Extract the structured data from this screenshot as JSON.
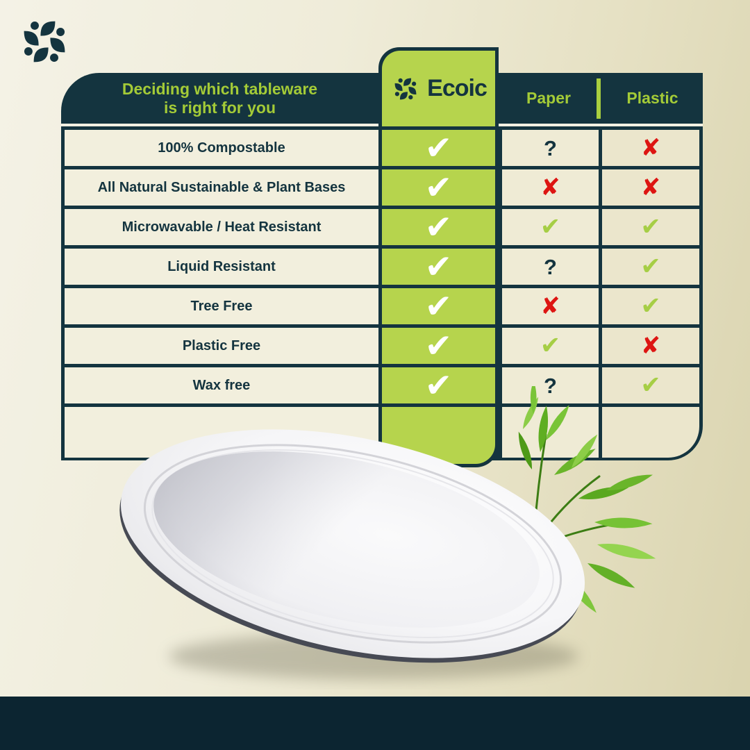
{
  "brand": {
    "name": "Ecoic",
    "logo_icon": "ecoic-leaf-pinwheel-logo"
  },
  "table": {
    "title_line1": "Deciding which tableware",
    "title_line2": "is right for you",
    "columns": {
      "ecoic": "Ecoic",
      "paper": "Paper",
      "plastic": "Plastic"
    },
    "rows": [
      {
        "feature": "100% Compostable",
        "ecoic": "check",
        "paper": "question",
        "plastic": "cross"
      },
      {
        "feature": "All Natural Sustainable & Plant Bases",
        "ecoic": "check",
        "paper": "cross",
        "plastic": "cross"
      },
      {
        "feature": "Microwavable / Heat Resistant",
        "ecoic": "check",
        "paper": "check",
        "plastic": "check"
      },
      {
        "feature": "Liquid Resistant",
        "ecoic": "check",
        "paper": "question",
        "plastic": "check"
      },
      {
        "feature": "Tree Free",
        "ecoic": "check",
        "paper": "cross",
        "plastic": "check"
      },
      {
        "feature": "Plastic Free",
        "ecoic": "check",
        "paper": "check",
        "plastic": "cross"
      },
      {
        "feature": "Wax free",
        "ecoic": "check",
        "paper": "question",
        "plastic": "check"
      }
    ]
  },
  "marks": {
    "check": "✔",
    "cross": "✘",
    "question": "?"
  },
  "artwork": {
    "plate": "white-compostable-oval-plate",
    "plant": "bamboo-leaves"
  },
  "colors": {
    "dark_teal": "#14343f",
    "footer_bar": "#0c2531",
    "accent_green": "#a4cb37",
    "box_green": "#b6d44d",
    "check_green": "#a6ce45",
    "cross_red": "#dd1512",
    "cell_cream": "#f2efdd"
  }
}
